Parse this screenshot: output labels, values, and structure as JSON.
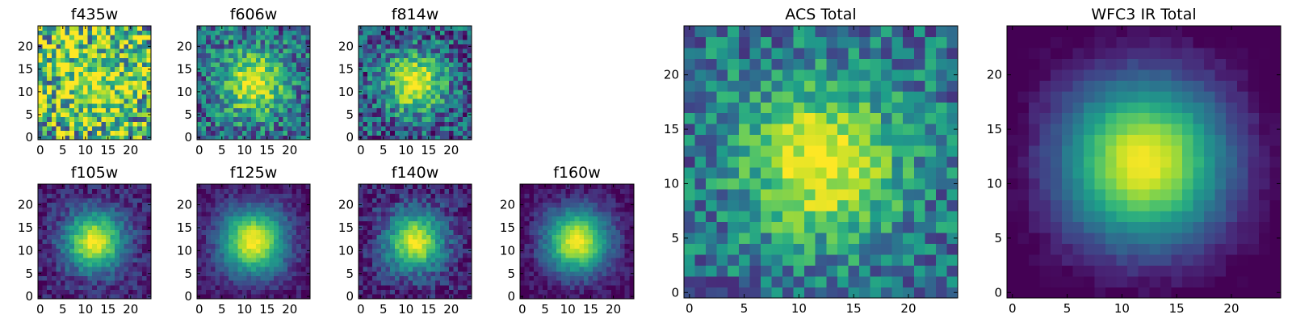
{
  "chart_data": [
    {
      "type": "heatmap",
      "title": "f435w",
      "xlim": [
        -0.5,
        24.5
      ],
      "ylim": [
        -0.5,
        24.5
      ],
      "xticks": [
        0,
        5,
        10,
        15,
        20
      ],
      "yticks": [
        0,
        5,
        10,
        15,
        20
      ],
      "grid": 25,
      "colormap": "viridis",
      "noise": 0.55,
      "peak": 0.15,
      "sigma": 6,
      "bg": 0.72,
      "seed": 11
    },
    {
      "type": "heatmap",
      "title": "f606w",
      "xlim": [
        -0.5,
        24.5
      ],
      "ylim": [
        -0.5,
        24.5
      ],
      "xticks": [
        0,
        5,
        10,
        15,
        20
      ],
      "yticks": [
        0,
        5,
        10,
        15,
        20
      ],
      "grid": 25,
      "colormap": "viridis",
      "noise": 0.32,
      "peak": 0.55,
      "sigma": 5,
      "bg": 0.42,
      "seed": 23
    },
    {
      "type": "heatmap",
      "title": "f814w",
      "xlim": [
        -0.5,
        24.5
      ],
      "ylim": [
        -0.5,
        24.5
      ],
      "xticks": [
        0,
        5,
        10,
        15,
        20
      ],
      "yticks": [
        0,
        5,
        10,
        15,
        20
      ],
      "grid": 25,
      "colormap": "viridis",
      "noise": 0.32,
      "peak": 0.65,
      "sigma": 4.5,
      "bg": 0.35,
      "seed": 37
    },
    {
      "type": "heatmap",
      "title": "f105w",
      "xlim": [
        -0.5,
        24.5
      ],
      "ylim": [
        -0.5,
        24.5
      ],
      "xticks": [
        0,
        5,
        10,
        15,
        20
      ],
      "yticks": [
        0,
        5,
        10,
        15,
        20
      ],
      "grid": 25,
      "colormap": "viridis",
      "noise": 0.14,
      "peak": 0.82,
      "sigma": 4.5,
      "bg": 0.18,
      "seed": 41
    },
    {
      "type": "heatmap",
      "title": "f125w",
      "xlim": [
        -0.5,
        24.5
      ],
      "ylim": [
        -0.5,
        24.5
      ],
      "xticks": [
        0,
        5,
        10,
        15,
        20
      ],
      "yticks": [
        0,
        5,
        10,
        15,
        20
      ],
      "grid": 25,
      "colormap": "viridis",
      "noise": 0.1,
      "peak": 0.85,
      "sigma": 5,
      "bg": 0.16,
      "seed": 53
    },
    {
      "type": "heatmap",
      "title": "f140w",
      "xlim": [
        -0.5,
        24.5
      ],
      "ylim": [
        -0.5,
        24.5
      ],
      "xticks": [
        0,
        5,
        10,
        15,
        20
      ],
      "yticks": [
        0,
        5,
        10,
        15,
        20
      ],
      "grid": 25,
      "colormap": "viridis",
      "noise": 0.16,
      "peak": 0.8,
      "sigma": 4.5,
      "bg": 0.18,
      "seed": 67
    },
    {
      "type": "heatmap",
      "title": "f160w",
      "xlim": [
        -0.5,
        24.5
      ],
      "ylim": [
        -0.5,
        24.5
      ],
      "xticks": [
        0,
        5,
        10,
        15,
        20
      ],
      "yticks": [
        0,
        5,
        10,
        15,
        20
      ],
      "grid": 25,
      "colormap": "viridis",
      "noise": 0.1,
      "peak": 0.88,
      "sigma": 5,
      "bg": 0.12,
      "seed": 79
    },
    {
      "type": "heatmap",
      "title": "ACS Total",
      "xlim": [
        -0.5,
        24.5
      ],
      "ylim": [
        -0.5,
        24.5
      ],
      "xticks": [
        0,
        5,
        10,
        15,
        20
      ],
      "yticks": [
        0,
        5,
        10,
        15,
        20
      ],
      "grid": 25,
      "colormap": "viridis",
      "noise": 0.26,
      "peak": 0.55,
      "sigma": 5,
      "bg": 0.45,
      "seed": 97
    },
    {
      "type": "heatmap",
      "title": "WFC3 IR Total",
      "xlim": [
        -0.5,
        24.5
      ],
      "ylim": [
        -0.5,
        24.5
      ],
      "xticks": [
        0,
        5,
        10,
        15,
        20
      ],
      "yticks": [
        0,
        5,
        10,
        15,
        20
      ],
      "grid": 25,
      "colormap": "viridis",
      "noise": 0.04,
      "peak": 0.95,
      "sigma": 5.5,
      "bg": 0.05,
      "seed": 113
    }
  ]
}
